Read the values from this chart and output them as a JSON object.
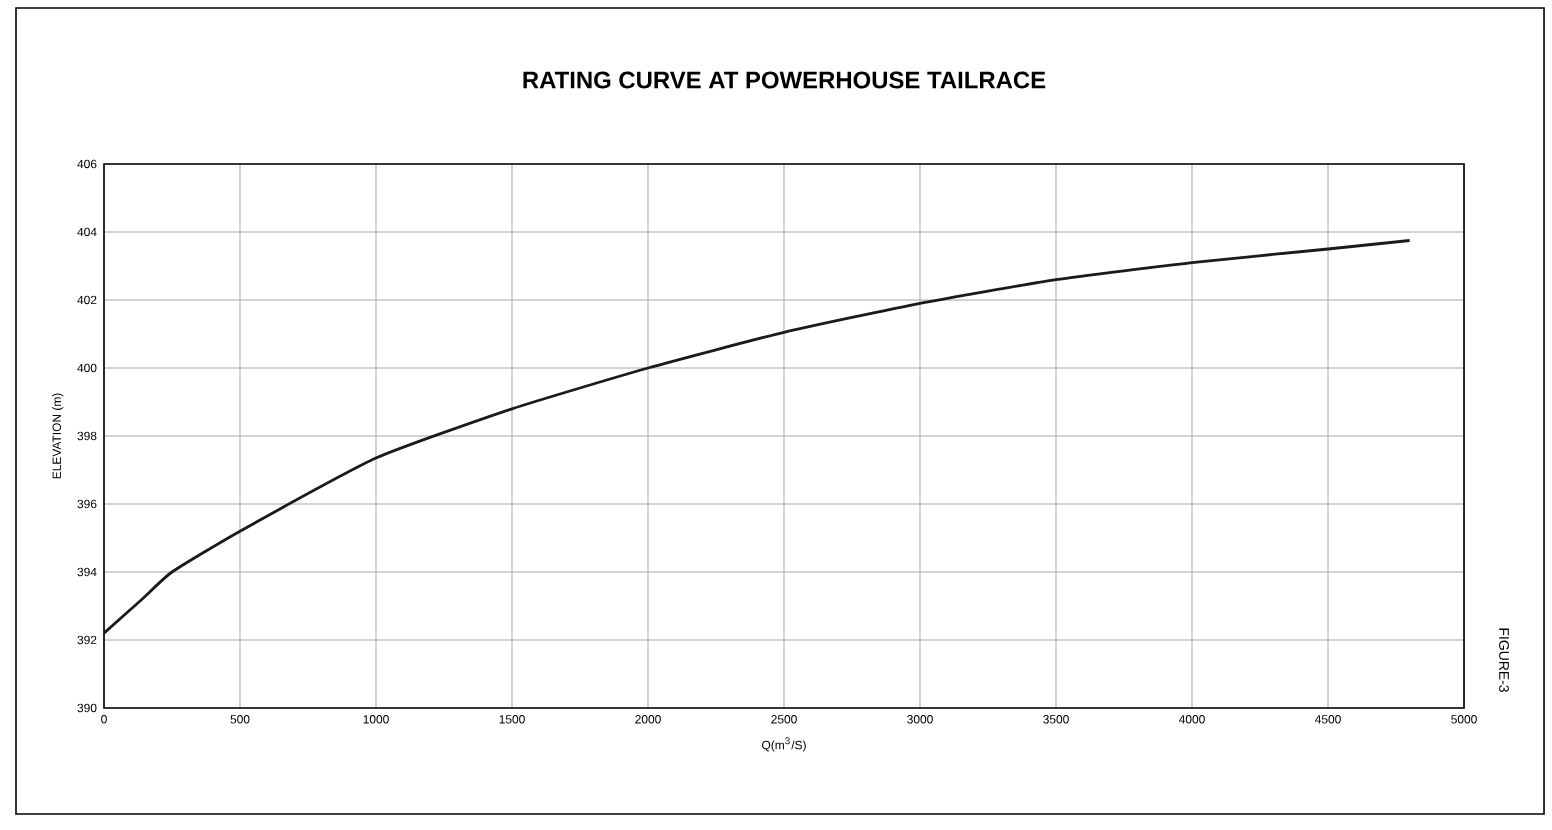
{
  "chart_data": {
    "type": "line",
    "title": "RATING CURVE AT POWERHOUSE TAILRACE",
    "xlabel": "Q(m$^{3}$/S)",
    "ylabel": "ELEVATION (m)",
    "annotations": [
      "FIGURE-3"
    ],
    "xlim": [
      0,
      5000
    ],
    "xticks": [
      0,
      500,
      1000,
      1500,
      2000,
      2500,
      3000,
      3500,
      4000,
      4500,
      5000
    ],
    "ylim": [
      390,
      406
    ],
    "yticks": [
      390,
      392,
      394,
      396,
      398,
      400,
      402,
      404,
      406
    ],
    "grid": true,
    "series": [
      {
        "color": "#1a1a1a",
        "x": [
          0,
          140,
          250,
          500,
          1000,
          1500,
          2000,
          2500,
          3000,
          3500,
          4000,
          4500,
          4800
        ],
        "values": [
          392.2,
          393.2,
          394.0,
          395.2,
          397.35,
          398.8,
          400.0,
          401.05,
          401.9,
          402.6,
          403.1,
          403.5,
          403.75
        ]
      }
    ]
  }
}
